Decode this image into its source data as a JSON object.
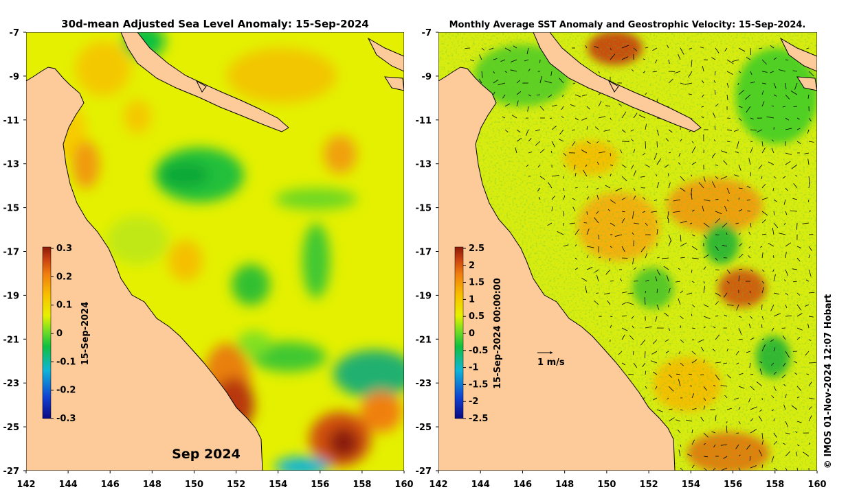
{
  "left_panel": {
    "title": "30d-mean Adjusted Sea Level Anomaly: 15-Sep-2024",
    "colorbar_ticks": [
      "0.3",
      "0.2",
      "0.1",
      "0",
      "-0.1",
      "-0.2",
      "-0.3"
    ],
    "colorbar_label": "15-Sep-2024",
    "month_label": "Sep 2024"
  },
  "right_panel": {
    "title": "Monthly Average SST Anomaly  and Geostrophic Velocity: 15-Sep-2024.",
    "colorbar_ticks": [
      "2.5",
      "2",
      "1.5",
      "1",
      "0.5",
      "0",
      "-0.5",
      "-1",
      "-1.5",
      "-2",
      "-2.5"
    ],
    "colorbar_label": "15-Sep-2024 00:00:00",
    "velocity_scale_label": "1 m/s"
  },
  "axes": {
    "lat_ticks": [
      "-7",
      "-9",
      "-11",
      "-13",
      "-15",
      "-17",
      "-19",
      "-21",
      "-23",
      "-25",
      "-27"
    ],
    "lon_ticks": [
      "142",
      "144",
      "146",
      "148",
      "150",
      "152",
      "154",
      "156",
      "158",
      "160"
    ]
  },
  "credit": "© IMOS 01-Nov-2024 12:07 Hobart",
  "colors": {
    "land": "#fdcb9a",
    "coast": "#000000",
    "anomaly_scale": [
      "#0a0a80",
      "#1040d0",
      "#10b4d8",
      "#10c040",
      "#80e020",
      "#e8f000",
      "#f8c000",
      "#f08010",
      "#c84010",
      "#8a1a08"
    ]
  }
}
